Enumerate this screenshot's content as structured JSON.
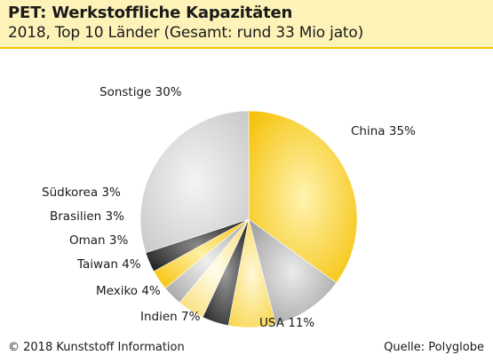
{
  "header": {
    "title": "PET: Werkstoffliche Kapazitäten",
    "subtitle": "2018, Top 10 Länder (Gesamt: rund 33 Mio jato)"
  },
  "footer": {
    "copyright": "© 2018 Kunststoff Information",
    "source": "Quelle: Polyglobe"
  },
  "colors": {
    "china": "#f8c400",
    "usa": "#a8a8a8",
    "indien": "#fbe58a",
    "mexiko": "#2a2a2a",
    "taiwan": "#fbe8a0",
    "oman": "#b0b0b0",
    "brasilien": "#f8c400",
    "suedkorea": "#2a2a2a",
    "sonstige": "#d2d2d2"
  },
  "chart_data": {
    "type": "pie",
    "start_angle_deg": 0,
    "direction": "clockwise",
    "slices": [
      {
        "key": "china",
        "label": "China 35%",
        "value": 35
      },
      {
        "key": "usa",
        "label": "USA 11%",
        "value": 11
      },
      {
        "key": "indien",
        "label": "Indien 7%",
        "value": 7
      },
      {
        "key": "mexiko",
        "label": "Mexiko 4%",
        "value": 4
      },
      {
        "key": "taiwan",
        "label": "Taiwan 4%",
        "value": 4
      },
      {
        "key": "oman",
        "label": "Oman 3%",
        "value": 3
      },
      {
        "key": "brasilien",
        "label": "Brasilien 3%",
        "value": 3
      },
      {
        "key": "suedkorea",
        "label": "Südkorea 3%",
        "value": 3
      },
      {
        "key": "sonstige",
        "label": "Sonstige 30%",
        "value": 30
      }
    ]
  }
}
